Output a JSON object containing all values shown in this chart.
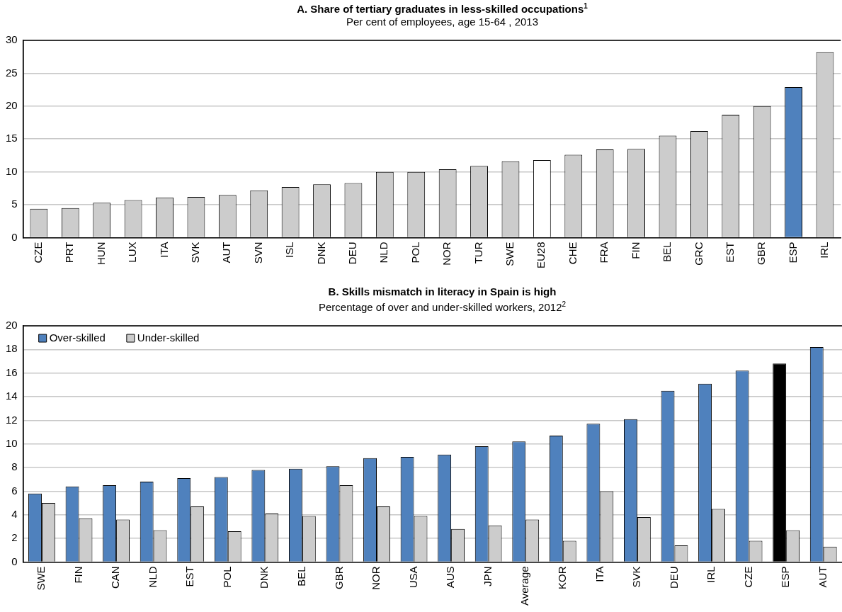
{
  "chart_data": [
    {
      "type": "bar",
      "title": "A. Share of tertiary graduates in less-skilled occupations$^{1}$",
      "subtitle": "Per cent of employees, age 15-64 , 2013",
      "categories": [
        "CZE",
        "PRT",
        "HUN",
        "LUX",
        "ITA",
        "SVK",
        "AUT",
        "SVN",
        "ISL",
        "DNK",
        "DEU",
        "NLD",
        "POL",
        "NOR",
        "TUR",
        "SWE",
        "EU28",
        "CHE",
        "FRA",
        "FIN",
        "BEL",
        "GRC",
        "EST",
        "GBR",
        "ESP",
        "IRL"
      ],
      "series": [
        {
          "colors": [
            "#cccccc",
            "#cccccc",
            "#cccccc",
            "#cccccc",
            "#cccccc",
            "#cccccc",
            "#cccccc",
            "#cccccc",
            "#cccccc",
            "#cccccc",
            "#cccccc",
            "#cccccc",
            "#cccccc",
            "#cccccc",
            "#cccccc",
            "#cccccc",
            "#ffffff",
            "#cccccc",
            "#cccccc",
            "#cccccc",
            "#cccccc",
            "#cccccc",
            "#cccccc",
            "#cccccc",
            "#4f81bd",
            "#cccccc"
          ],
          "values": [
            4.4,
            4.5,
            5.3,
            5.7,
            6.1,
            6.2,
            6.5,
            7.2,
            7.7,
            8.1,
            8.3,
            10.0,
            10.0,
            10.4,
            10.9,
            11.6,
            11.8,
            12.6,
            13.4,
            13.5,
            15.5,
            16.2,
            18.7,
            20.0,
            22.9,
            28.2
          ]
        }
      ],
      "ylim": [
        0,
        30
      ],
      "yticks": [
        0,
        5,
        10,
        15,
        20,
        25,
        30
      ],
      "grid": "y",
      "legend": false
    },
    {
      "type": "bar",
      "title": "B. Skills mismatch in literacy in Spain is high",
      "subtitle": "Percentage of over and under-skilled workers, 2012$^{2}$",
      "categories": [
        "SWE",
        "FIN",
        "CAN",
        "NLD",
        "EST",
        "POL",
        "DNK",
        "BEL",
        "GBR",
        "NOR",
        "USA",
        "AUS",
        "JPN",
        "Average",
        "KOR",
        "ITA",
        "SVK",
        "DEU",
        "IRL",
        "CZE",
        "ESP",
        "AUT"
      ],
      "series": [
        {
          "name": "Over-skilled",
          "color": "#4f81bd",
          "colors": [
            "#4f81bd",
            "#4f81bd",
            "#4f81bd",
            "#4f81bd",
            "#4f81bd",
            "#4f81bd",
            "#4f81bd",
            "#4f81bd",
            "#4f81bd",
            "#4f81bd",
            "#4f81bd",
            "#4f81bd",
            "#4f81bd",
            "#4f81bd",
            "#4f81bd",
            "#4f81bd",
            "#4f81bd",
            "#4f81bd",
            "#4f81bd",
            "#4f81bd",
            "#000000",
            "#4f81bd"
          ],
          "values": [
            5.8,
            6.4,
            6.5,
            6.8,
            7.1,
            7.2,
            7.8,
            7.9,
            8.1,
            8.8,
            8.9,
            9.1,
            9.8,
            10.2,
            10.7,
            11.7,
            12.1,
            14.5,
            15.1,
            16.2,
            16.8,
            18.2
          ]
        },
        {
          "name": "Under-skilled",
          "color": "#cccccc",
          "values": [
            5.0,
            3.7,
            3.6,
            2.7,
            4.7,
            2.6,
            4.1,
            3.9,
            6.5,
            4.7,
            3.9,
            2.8,
            3.1,
            3.6,
            1.8,
            6.0,
            3.8,
            1.4,
            4.5,
            1.8,
            2.7,
            1.3
          ]
        }
      ],
      "ylim": [
        0,
        20
      ],
      "yticks": [
        0,
        2,
        4,
        6,
        8,
        10,
        12,
        14,
        16,
        18,
        20
      ],
      "grid": "y",
      "legend": "top left"
    }
  ]
}
